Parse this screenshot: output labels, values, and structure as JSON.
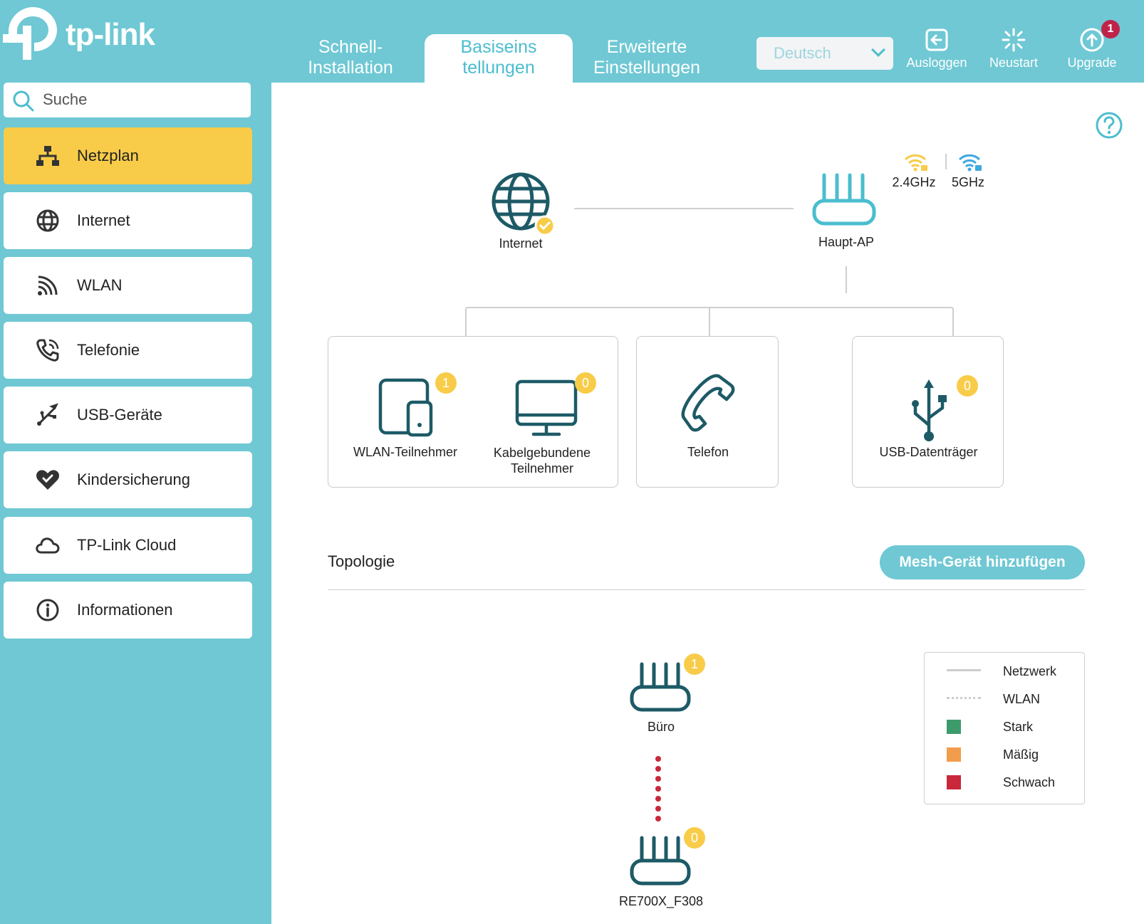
{
  "header": {
    "logo_text": "tp-link",
    "tabs": [
      {
        "label": "Schnell-\nInstallation",
        "line1": "Schnell-",
        "line2": "Installation"
      },
      {
        "label": "Basiseinstellungen",
        "line1": "Basiseins",
        "line2": "tellungen"
      },
      {
        "label": "Erweiterte Einstellungen",
        "line1": "Erweiterte",
        "line2": "Einstellungen"
      }
    ],
    "language": "Deutsch",
    "logout_label": "Ausloggen",
    "restart_label": "Neustart",
    "upgrade_label": "Upgrade",
    "upgrade_badge": "1"
  },
  "sidebar": {
    "search_placeholder": "Suche",
    "items": [
      {
        "label": "Netzplan",
        "icon": "network-map-icon"
      },
      {
        "label": "Internet",
        "icon": "globe-icon"
      },
      {
        "label": "WLAN",
        "icon": "wifi-icon"
      },
      {
        "label": "Telefonie",
        "icon": "phone-icon"
      },
      {
        "label": "USB-Geräte",
        "icon": "usb-icon"
      },
      {
        "label": "Kindersicherung",
        "icon": "heart-icon"
      },
      {
        "label": "TP-Link Cloud",
        "icon": "cloud-icon"
      },
      {
        "label": "Informationen",
        "icon": "info-icon"
      }
    ]
  },
  "network_map": {
    "internet_label": "Internet",
    "main_ap_label": "Haupt-AP",
    "band_24": "2.4GHz",
    "band_5": "5GHz",
    "devices": {
      "wlan_clients_label": "WLAN-Teilnehmer",
      "wlan_clients_count": "1",
      "wired_clients_line1": "Kabelgebundene",
      "wired_clients_line2": "Teilnehmer",
      "wired_clients_count": "0",
      "phone_label": "Telefon",
      "usb_label": "USB-Datenträger",
      "usb_count": "0"
    }
  },
  "topology": {
    "title": "Topologie",
    "add_mesh_button": "Mesh-Gerät hinzufügen",
    "nodes": [
      {
        "name": "Büro",
        "count": "1"
      },
      {
        "name": "RE700X_F308",
        "count": "0"
      }
    ],
    "link_quality": "Schwach",
    "legend": [
      {
        "label": "Netzwerk",
        "type": "line",
        "color": "#cccccc"
      },
      {
        "label": "WLAN",
        "type": "dotted",
        "color": "#cccccc"
      },
      {
        "label": "Stark",
        "type": "square",
        "color": "#3d9b6b"
      },
      {
        "label": "Mäßig",
        "type": "square",
        "color": "#f29d4b"
      },
      {
        "label": "Schwach",
        "type": "square",
        "color": "#c9283a"
      }
    ]
  },
  "colors": {
    "accent": "#6fc8d4",
    "active_nav": "#f8cc49",
    "icon_dark": "#1d5a66",
    "badge": "#f8cc49",
    "upgrade_badge": "#c0234a"
  }
}
